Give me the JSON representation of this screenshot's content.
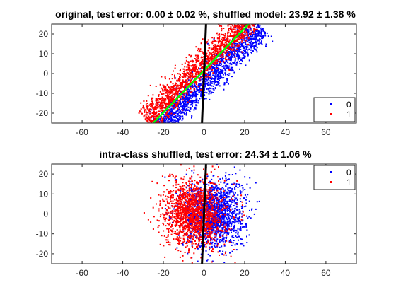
{
  "chart_data": [
    {
      "type": "scatter",
      "title": "original, test error: 0.00 ± 0.02 %, shuffled model: 23.92 ± 1.38 %",
      "xlim": [
        -75,
        75
      ],
      "ylim": [
        -25,
        25
      ],
      "x_ticks": [
        "-60",
        "-40",
        "-20",
        "0",
        "20",
        "40",
        "60"
      ],
      "y_ticks": [
        "-20",
        "-10",
        "0",
        "10",
        "20"
      ],
      "series": [
        {
          "name": "0",
          "color": "#0000ff",
          "shape": "correlated band along y = x, shifted right (~+2)",
          "x_range": [
            -12,
            30
          ],
          "y_range": [
            -25,
            24
          ]
        },
        {
          "name": "1",
          "color": "#ff0000",
          "shape": "correlated band along y = x, shifted left (~-2)",
          "x_range": [
            -22,
            22
          ],
          "y_range": [
            -25,
            23
          ]
        }
      ],
      "lines": [
        {
          "color": "#00ff00",
          "from": [
            -25,
            -25
          ],
          "to": [
            22,
            25
          ]
        },
        {
          "color": "#000000",
          "from": [
            -1,
            -25
          ],
          "to": [
            1,
            25
          ]
        }
      ],
      "legend": {
        "placement": "bottom-right",
        "entries": [
          "0",
          "1"
        ]
      }
    },
    {
      "type": "scatter",
      "title": "intra-class shuffled, test error: 24.34 ± 1.06 %",
      "xlim": [
        -75,
        75
      ],
      "ylim": [
        -25,
        25
      ],
      "x_ticks": [
        "-60",
        "-40",
        "-20",
        "0",
        "20",
        "40",
        "60"
      ],
      "y_ticks": [
        "-20",
        "-10",
        "0",
        "10",
        "20"
      ],
      "series": [
        {
          "name": "0",
          "color": "#0000ff",
          "shape": "round blob centered near (5, 0)",
          "x_range": [
            -12,
            30
          ],
          "y_range": [
            -25,
            24
          ]
        },
        {
          "name": "1",
          "color": "#ff0000",
          "shape": "round blob centered near (-5, 0)",
          "x_range": [
            -28,
            18
          ],
          "y_range": [
            -25,
            23
          ]
        }
      ],
      "lines": [
        {
          "color": "#000000",
          "from": [
            -1,
            -25
          ],
          "to": [
            1,
            25
          ]
        }
      ],
      "legend": {
        "placement": "top-right",
        "entries": [
          "0",
          "1"
        ]
      }
    }
  ]
}
